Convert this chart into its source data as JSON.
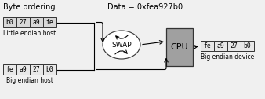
{
  "title": "Byte ordering",
  "data_label": "Data = 0xfea927b0",
  "le_bytes": [
    "b0",
    "27",
    "a9",
    "fe"
  ],
  "be_bytes": [
    "fe",
    "a9",
    "27",
    "b0"
  ],
  "out_bytes": [
    "fe",
    "a9",
    "27",
    "b0"
  ],
  "le_label": "Little endian host",
  "be_label": "Big endian host",
  "out_label": "Big endian device",
  "swap_label": "SWAP",
  "cpu_label": "CPU",
  "cpu_fill": "#a0a0a0",
  "box_fill": "#d8d8d8",
  "bg_color": "#f0f0f0",
  "title_fontsize": 7,
  "label_fontsize": 5.5,
  "byte_fontsize": 5.8,
  "cpu_fontsize": 8,
  "swap_fontsize": 6.5
}
